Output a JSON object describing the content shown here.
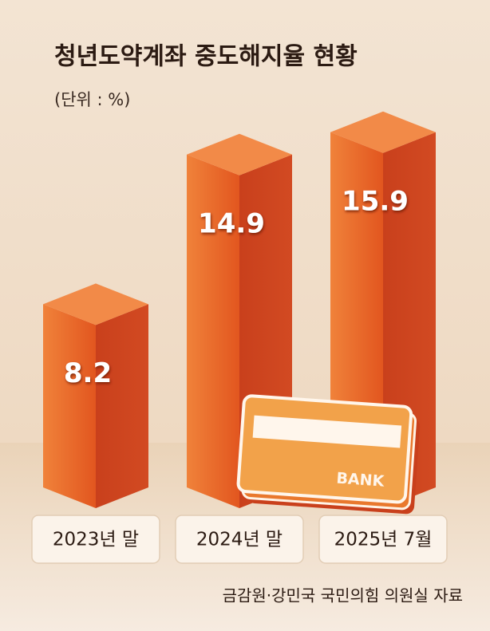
{
  "chart_data": {
    "type": "bar3d",
    "title": "청년도약계좌 중도해지율 현황",
    "subtitle": "(단위 : %)",
    "categories": [
      "2023년 말",
      "2024년 말",
      "2025년 7월"
    ],
    "values": [
      8.2,
      14.9,
      15.9
    ],
    "color": "#e8622a",
    "source": "금감원·강민국 국민의힘 의원실 자료"
  }
}
